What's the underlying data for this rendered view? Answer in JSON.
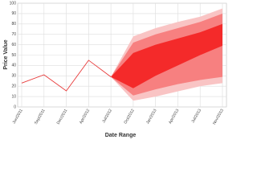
{
  "chart_data": {
    "type": "fan",
    "x_label": "Date Range",
    "y_label": "Price Value",
    "categories": [
      "Jun/2011",
      "Sep/2011",
      "Dec/2011",
      "Apr/2012",
      "Jul/2012",
      "Oct/2012",
      "Jan/2013",
      "Apr/2013",
      "Jul/2013",
      "Nov/2013"
    ],
    "series": [
      {
        "color": "#e83a3a",
        "values": [
          23,
          31,
          15.5,
          45,
          29,
          null,
          null,
          null,
          null,
          null
        ]
      }
    ],
    "bands": [
      {
        "color": "#f9c4c4",
        "lower": [
          null,
          null,
          null,
          null,
          29,
          6,
          10,
          15,
          20,
          23
        ],
        "upper": [
          null,
          null,
          null,
          null,
          29,
          68,
          76,
          82,
          87,
          95
        ]
      },
      {
        "color": "#f78080",
        "lower": [
          null,
          null,
          null,
          null,
          29,
          11,
          17,
          22,
          26,
          29
        ],
        "upper": [
          null,
          null,
          null,
          null,
          29,
          62,
          70,
          76,
          82,
          90
        ]
      },
      {
        "color": "#f42a2a",
        "lower": [
          null,
          null,
          null,
          null,
          29,
          18,
          30,
          40,
          50,
          59
        ],
        "upper": [
          null,
          null,
          null,
          null,
          29,
          52,
          60,
          66,
          72,
          80
        ]
      }
    ],
    "ylim": [
      0,
      100
    ],
    "yticks": [
      0,
      10,
      20,
      30,
      40,
      50,
      60,
      70,
      80,
      90,
      100
    ],
    "grid": true
  }
}
